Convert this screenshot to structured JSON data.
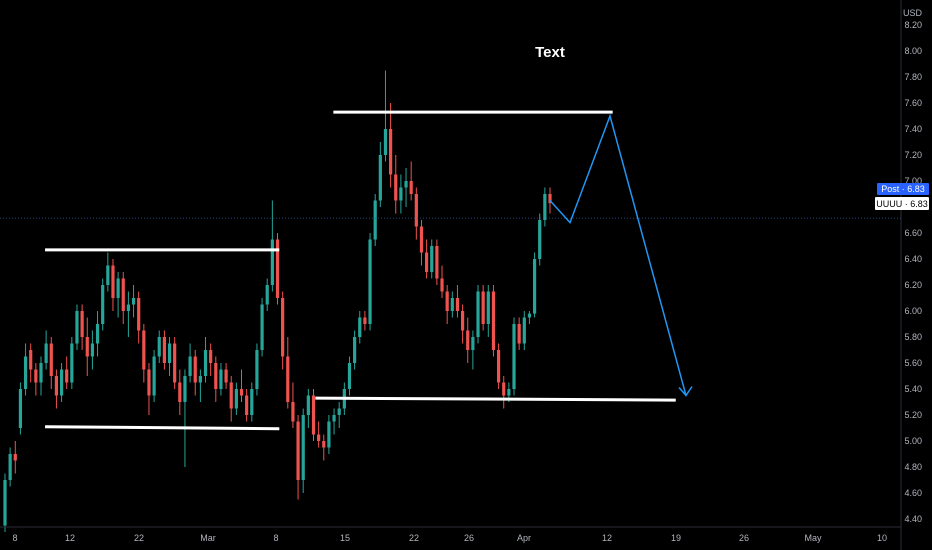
{
  "chart_data": {
    "type": "candlestick",
    "symbol": "UUUU",
    "currency": "USD",
    "annotation": "Text",
    "ylim": [
      4.3,
      8.4
    ],
    "y_ticks": [
      "8.20",
      "8.00",
      "7.80",
      "7.60",
      "7.40",
      "7.20",
      "7.00",
      "6.80",
      "6.60",
      "6.40",
      "6.20",
      "6.00",
      "5.80",
      "5.60",
      "5.40",
      "5.20",
      "5.00",
      "4.80",
      "4.60",
      "4.40"
    ],
    "x_ticks": [
      "8",
      "12",
      "22",
      "Mar",
      "8",
      "15",
      "22",
      "26",
      "Apr",
      "12",
      "19",
      "26",
      "May",
      "10"
    ],
    "price_labels": {
      "post": {
        "label": "Post",
        "value": "6.83",
        "color": "#2962ff"
      },
      "last": {
        "label": "UUUU",
        "value": "6.83",
        "color": "#ffffff"
      }
    },
    "colors": {
      "up": "#26a69a",
      "down": "#ef5350",
      "projection": "#2196f3",
      "levels": "#ffffff"
    },
    "candles": [
      [
        4.35,
        4.75,
        4.3,
        4.7
      ],
      [
        4.7,
        4.95,
        4.65,
        4.9
      ],
      [
        4.9,
        5.0,
        4.75,
        4.85
      ],
      [
        5.1,
        5.45,
        5.05,
        5.4
      ],
      [
        5.4,
        5.75,
        5.35,
        5.65
      ],
      [
        5.7,
        5.75,
        5.45,
        5.55
      ],
      [
        5.55,
        5.6,
        5.35,
        5.45
      ],
      [
        5.45,
        5.65,
        5.35,
        5.6
      ],
      [
        5.6,
        5.85,
        5.55,
        5.75
      ],
      [
        5.75,
        5.8,
        5.4,
        5.5
      ],
      [
        5.5,
        5.55,
        5.25,
        5.35
      ],
      [
        5.35,
        5.6,
        5.3,
        5.55
      ],
      [
        5.55,
        5.65,
        5.4,
        5.45
      ],
      [
        5.45,
        5.8,
        5.4,
        5.75
      ],
      [
        5.75,
        6.05,
        5.7,
        6.0
      ],
      [
        6.0,
        6.05,
        5.7,
        5.8
      ],
      [
        5.8,
        5.95,
        5.5,
        5.65
      ],
      [
        5.65,
        5.85,
        5.55,
        5.75
      ],
      [
        5.75,
        6.0,
        5.65,
        5.9
      ],
      [
        5.9,
        6.25,
        5.85,
        6.2
      ],
      [
        6.2,
        6.45,
        6.15,
        6.35
      ],
      [
        6.35,
        6.4,
        6.0,
        6.1
      ],
      [
        6.1,
        6.3,
        5.95,
        6.25
      ],
      [
        6.25,
        6.3,
        5.9,
        6.0
      ],
      [
        6.0,
        6.15,
        5.8,
        6.05
      ],
      [
        6.05,
        6.2,
        5.95,
        6.1
      ],
      [
        6.1,
        6.15,
        5.75,
        5.85
      ],
      [
        5.85,
        5.9,
        5.45,
        5.55
      ],
      [
        5.55,
        5.6,
        5.2,
        5.35
      ],
      [
        5.35,
        5.7,
        5.3,
        5.65
      ],
      [
        5.65,
        5.85,
        5.6,
        5.8
      ],
      [
        5.8,
        5.85,
        5.55,
        5.6
      ],
      [
        5.6,
        5.8,
        5.5,
        5.75
      ],
      [
        5.75,
        5.8,
        5.4,
        5.45
      ],
      [
        5.45,
        5.55,
        5.2,
        5.3
      ],
      [
        5.3,
        5.55,
        4.8,
        5.5
      ],
      [
        5.5,
        5.75,
        5.45,
        5.65
      ],
      [
        5.65,
        5.7,
        5.35,
        5.45
      ],
      [
        5.45,
        5.55,
        5.3,
        5.5
      ],
      [
        5.5,
        5.8,
        5.45,
        5.7
      ],
      [
        5.7,
        5.75,
        5.5,
        5.6
      ],
      [
        5.6,
        5.65,
        5.3,
        5.4
      ],
      [
        5.4,
        5.6,
        5.35,
        5.55
      ],
      [
        5.55,
        5.6,
        5.4,
        5.45
      ],
      [
        5.45,
        5.5,
        5.15,
        5.25
      ],
      [
        5.25,
        5.45,
        5.2,
        5.4
      ],
      [
        5.4,
        5.55,
        5.3,
        5.35
      ],
      [
        5.35,
        5.4,
        5.15,
        5.2
      ],
      [
        5.2,
        5.45,
        5.15,
        5.4
      ],
      [
        5.4,
        5.75,
        5.35,
        5.7
      ],
      [
        5.7,
        6.1,
        5.65,
        6.05
      ],
      [
        6.05,
        6.25,
        6.0,
        6.2
      ],
      [
        6.2,
        6.85,
        6.15,
        6.55
      ],
      [
        6.55,
        6.6,
        6.05,
        6.1
      ],
      [
        6.1,
        6.15,
        5.55,
        5.65
      ],
      [
        5.65,
        5.8,
        5.25,
        5.3
      ],
      [
        5.3,
        5.45,
        5.1,
        5.15
      ],
      [
        5.15,
        5.2,
        4.55,
        4.7
      ],
      [
        4.7,
        5.25,
        4.6,
        5.2
      ],
      [
        5.2,
        5.4,
        5.1,
        5.35
      ],
      [
        5.35,
        5.4,
        5.0,
        5.05
      ],
      [
        5.05,
        5.15,
        4.95,
        5.0
      ],
      [
        5.0,
        5.05,
        4.85,
        4.95
      ],
      [
        4.95,
        5.2,
        4.9,
        5.15
      ],
      [
        5.15,
        5.25,
        5.05,
        5.2
      ],
      [
        5.2,
        5.3,
        5.1,
        5.25
      ],
      [
        5.25,
        5.45,
        5.2,
        5.4
      ],
      [
        5.4,
        5.65,
        5.35,
        5.6
      ],
      [
        5.6,
        5.85,
        5.55,
        5.8
      ],
      [
        5.8,
        6.0,
        5.75,
        5.95
      ],
      [
        5.95,
        6.0,
        5.85,
        5.9
      ],
      [
        5.9,
        6.6,
        5.85,
        6.55
      ],
      [
        6.55,
        6.9,
        6.5,
        6.85
      ],
      [
        6.85,
        7.3,
        6.8,
        7.2
      ],
      [
        7.2,
        7.85,
        7.15,
        7.4
      ],
      [
        7.4,
        7.6,
        6.95,
        7.05
      ],
      [
        7.05,
        7.2,
        6.75,
        6.85
      ],
      [
        6.85,
        7.05,
        6.75,
        6.95
      ],
      [
        6.95,
        7.1,
        6.8,
        7.0
      ],
      [
        7.0,
        7.15,
        6.85,
        6.9
      ],
      [
        6.9,
        6.95,
        6.55,
        6.65
      ],
      [
        6.65,
        6.7,
        6.35,
        6.45
      ],
      [
        6.45,
        6.55,
        6.25,
        6.3
      ],
      [
        6.3,
        6.55,
        6.25,
        6.5
      ],
      [
        6.5,
        6.55,
        6.2,
        6.25
      ],
      [
        6.25,
        6.35,
        6.1,
        6.15
      ],
      [
        6.15,
        6.2,
        5.9,
        6.0
      ],
      [
        6.0,
        6.15,
        5.95,
        6.1
      ],
      [
        6.1,
        6.2,
        5.95,
        6.0
      ],
      [
        6.0,
        6.05,
        5.75,
        5.85
      ],
      [
        5.85,
        5.95,
        5.6,
        5.7
      ],
      [
        5.7,
        5.85,
        5.55,
        5.8
      ],
      [
        5.8,
        6.2,
        5.75,
        6.15
      ],
      [
        6.15,
        6.2,
        5.85,
        5.9
      ],
      [
        5.9,
        6.2,
        5.8,
        6.15
      ],
      [
        6.15,
        6.2,
        5.65,
        5.7
      ],
      [
        5.7,
        5.75,
        5.4,
        5.45
      ],
      [
        5.45,
        5.5,
        5.25,
        5.35
      ],
      [
        5.35,
        5.45,
        5.3,
        5.4
      ],
      [
        5.4,
        5.95,
        5.35,
        5.9
      ],
      [
        5.9,
        5.95,
        5.7,
        5.75
      ],
      [
        5.75,
        6.0,
        5.7,
        5.95
      ],
      [
        5.95,
        6.0,
        5.9,
        5.98
      ],
      [
        5.98,
        6.45,
        5.95,
        6.4
      ],
      [
        6.4,
        6.75,
        6.35,
        6.7
      ],
      [
        6.7,
        6.95,
        6.65,
        6.9
      ],
      [
        6.9,
        6.95,
        6.75,
        6.83
      ]
    ],
    "levels": [
      {
        "value": 6.47,
        "x_start": 0.05,
        "x_end": 0.31
      },
      {
        "value": 5.11,
        "x_start": 0.05,
        "x_end": 0.31
      },
      {
        "value": 7.53,
        "x_start": 0.37,
        "x_end": 0.68
      },
      {
        "value": 5.33,
        "x_start": 0.35,
        "x_end": 0.75
      }
    ],
    "projection": [
      6.85,
      6.68,
      7.5,
      5.35
    ]
  }
}
